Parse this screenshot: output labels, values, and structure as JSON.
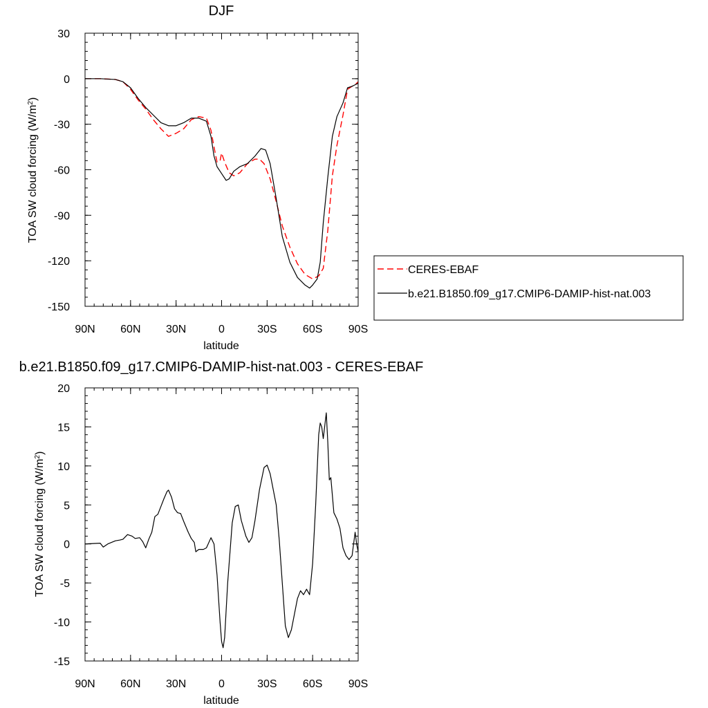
{
  "chart_data": [
    {
      "type": "line",
      "title": "DJF",
      "xlabel": "latitude",
      "ylabel": {
        "main": "TOA SW cloud forcing (W/m",
        "sup": "2",
        "close": ")"
      },
      "x_domain": [
        90,
        -90
      ],
      "x_ticks": [
        90,
        60,
        30,
        0,
        -30,
        -60,
        -90
      ],
      "x_tick_labels": [
        "90N",
        "60N",
        "30N",
        "0",
        "30S",
        "60S",
        "90S"
      ],
      "ylim": [
        -150,
        30
      ],
      "y_ticks": [
        -150,
        -120,
        -90,
        -60,
        -30,
        0,
        30
      ],
      "y_tick_labels": [
        "-150",
        "-120",
        "-90",
        "-60",
        "-30",
        "0",
        "30"
      ],
      "y_minor_step": 6,
      "x_minor_step": 6,
      "grid": false,
      "legend_position": "right",
      "series": [
        {
          "name": "CERES-EBAF",
          "color": "#ff0000",
          "dashed": true,
          "points": [
            [
              90,
              0
            ],
            [
              80,
              0
            ],
            [
              70,
              -0.5
            ],
            [
              65,
              -2
            ],
            [
              60,
              -7
            ],
            [
              55,
              -14
            ],
            [
              50,
              -20
            ],
            [
              45,
              -27
            ],
            [
              40,
              -33
            ],
            [
              35,
              -38
            ],
            [
              30,
              -36
            ],
            [
              25,
              -33
            ],
            [
              20,
              -27
            ],
            [
              15,
              -25
            ],
            [
              10,
              -26
            ],
            [
              7,
              -34
            ],
            [
              5,
              -45
            ],
            [
              3,
              -55
            ],
            [
              1,
              -54
            ],
            [
              0,
              -49
            ],
            [
              -2,
              -55
            ],
            [
              -5,
              -62
            ],
            [
              -8,
              -64
            ],
            [
              -12,
              -62
            ],
            [
              -17,
              -56
            ],
            [
              -22,
              -53
            ],
            [
              -25,
              -53
            ],
            [
              -28,
              -56
            ],
            [
              -32,
              -66
            ],
            [
              -36,
              -81
            ],
            [
              -40,
              -97
            ],
            [
              -45,
              -111
            ],
            [
              -50,
              -122
            ],
            [
              -55,
              -129
            ],
            [
              -60,
              -132
            ],
            [
              -64,
              -130
            ],
            [
              -67,
              -125
            ],
            [
              -70,
              -100
            ],
            [
              -73,
              -64
            ],
            [
              -76,
              -44
            ],
            [
              -80,
              -24
            ],
            [
              -83,
              -7
            ],
            [
              -86,
              -5
            ],
            [
              -88,
              -4
            ],
            [
              -90,
              -2
            ]
          ]
        },
        {
          "name": "b.e21.B1850.f09_g17.CMIP6-DAMIP-hist-nat.003",
          "color": "#000000",
          "dashed": false,
          "points": [
            [
              90,
              0
            ],
            [
              80,
              0
            ],
            [
              70,
              -0.5
            ],
            [
              65,
              -2
            ],
            [
              60,
              -6
            ],
            [
              55,
              -13
            ],
            [
              50,
              -19
            ],
            [
              45,
              -24
            ],
            [
              40,
              -29
            ],
            [
              35,
              -31
            ],
            [
              30,
              -31
            ],
            [
              25,
              -29
            ],
            [
              20,
              -26
            ],
            [
              15,
              -26
            ],
            [
              10,
              -28
            ],
            [
              7,
              -38
            ],
            [
              5,
              -51
            ],
            [
              3,
              -58
            ],
            [
              1,
              -61
            ],
            [
              -1,
              -64
            ],
            [
              -3,
              -67
            ],
            [
              -5,
              -66
            ],
            [
              -8,
              -61
            ],
            [
              -12,
              -58
            ],
            [
              -17,
              -56
            ],
            [
              -22,
              -51
            ],
            [
              -26,
              -46
            ],
            [
              -29,
              -47
            ],
            [
              -32,
              -56
            ],
            [
              -36,
              -79
            ],
            [
              -40,
              -104
            ],
            [
              -45,
              -121
            ],
            [
              -50,
              -131
            ],
            [
              -55,
              -136
            ],
            [
              -58,
              -138
            ],
            [
              -60,
              -136
            ],
            [
              -63,
              -132
            ],
            [
              -65,
              -121
            ],
            [
              -67,
              -95
            ],
            [
              -70,
              -65
            ],
            [
              -73,
              -38
            ],
            [
              -76,
              -25
            ],
            [
              -80,
              -16
            ],
            [
              -83,
              -6
            ],
            [
              -86,
              -5
            ],
            [
              -88,
              -4
            ],
            [
              -90,
              -3
            ]
          ]
        }
      ]
    },
    {
      "type": "line",
      "title": "b.e21.B1850.f09_g17.CMIP6-DAMIP-hist-nat.003 - CERES-EBAF",
      "xlabel": "latitude",
      "ylabel": {
        "main": "TOA SW cloud forcing (W/m",
        "sup": "2",
        "close": ")"
      },
      "x_domain": [
        90,
        -90
      ],
      "x_ticks": [
        90,
        60,
        30,
        0,
        -30,
        -60,
        -90
      ],
      "x_tick_labels": [
        "90N",
        "60N",
        "30N",
        "0",
        "30S",
        "60S",
        "90S"
      ],
      "ylim": [
        -15,
        20
      ],
      "y_ticks": [
        -15,
        -10,
        -5,
        0,
        5,
        10,
        15,
        20
      ],
      "y_tick_labels": [
        "-15",
        "-10",
        "-5",
        "0",
        "5",
        "10",
        "15",
        "20"
      ],
      "y_minor_step": 1,
      "x_minor_step": 6,
      "grid": false,
      "series": [
        {
          "name": "",
          "color": "#000000",
          "dashed": false,
          "points": [
            [
              90,
              0
            ],
            [
              80,
              0.1
            ],
            [
              78,
              -0.4
            ],
            [
              75,
              0
            ],
            [
              70,
              0.4
            ],
            [
              67,
              0.5
            ],
            [
              65,
              0.6
            ],
            [
              62,
              1.2
            ],
            [
              59,
              1
            ],
            [
              57,
              0.7
            ],
            [
              54,
              0.8
            ],
            [
              52,
              0.3
            ],
            [
              50,
              -0.5
            ],
            [
              48,
              0.6
            ],
            [
              46,
              1.5
            ],
            [
              44,
              3.5
            ],
            [
              42,
              3.8
            ],
            [
              40,
              4.8
            ],
            [
              38,
              5.8
            ],
            [
              36,
              6.7
            ],
            [
              35,
              6.9
            ],
            [
              33,
              6
            ],
            [
              31,
              4.5
            ],
            [
              29,
              4
            ],
            [
              27,
              3.9
            ],
            [
              25,
              2.9
            ],
            [
              22,
              1.5
            ],
            [
              20,
              0.7
            ],
            [
              18,
              0.2
            ],
            [
              17,
              -1
            ],
            [
              15,
              -0.7
            ],
            [
              12,
              -0.7
            ],
            [
              10,
              -0.5
            ],
            [
              7,
              0.8
            ],
            [
              5,
              0
            ],
            [
              3,
              -4
            ],
            [
              1,
              -10
            ],
            [
              0,
              -12.5
            ],
            [
              -1,
              -13.3
            ],
            [
              -2,
              -12
            ],
            [
              -4,
              -5
            ],
            [
              -7,
              2.7
            ],
            [
              -9,
              4.8
            ],
            [
              -11,
              5
            ],
            [
              -13,
              3
            ],
            [
              -16,
              1
            ],
            [
              -18,
              0.2
            ],
            [
              -20,
              0.8
            ],
            [
              -22,
              3
            ],
            [
              -25,
              7
            ],
            [
              -28,
              9.8
            ],
            [
              -30,
              10.1
            ],
            [
              -32,
              9
            ],
            [
              -34,
              7
            ],
            [
              -36,
              5
            ],
            [
              -38,
              0.5
            ],
            [
              -40,
              -5
            ],
            [
              -42,
              -10.5
            ],
            [
              -44,
              -12
            ],
            [
              -46,
              -11
            ],
            [
              -48,
              -9
            ],
            [
              -50,
              -7
            ],
            [
              -52,
              -6
            ],
            [
              -54,
              -6.5
            ],
            [
              -56,
              -5.8
            ],
            [
              -58,
              -6.5
            ],
            [
              -60,
              -2.5
            ],
            [
              -62,
              5
            ],
            [
              -64,
              14
            ],
            [
              -65,
              15.5
            ],
            [
              -66,
              15
            ],
            [
              -67,
              13.5
            ],
            [
              -69,
              16.8
            ],
            [
              -70,
              13
            ],
            [
              -71,
              8.2
            ],
            [
              -72,
              8.5
            ],
            [
              -74,
              4
            ],
            [
              -76,
              3.2
            ],
            [
              -78,
              2
            ],
            [
              -80,
              -0.5
            ],
            [
              -82,
              -1.5
            ],
            [
              -84,
              -2
            ],
            [
              -86,
              -1.5
            ],
            [
              -88,
              1.5
            ],
            [
              -89,
              0
            ],
            [
              -90,
              -1
            ]
          ]
        }
      ]
    }
  ]
}
